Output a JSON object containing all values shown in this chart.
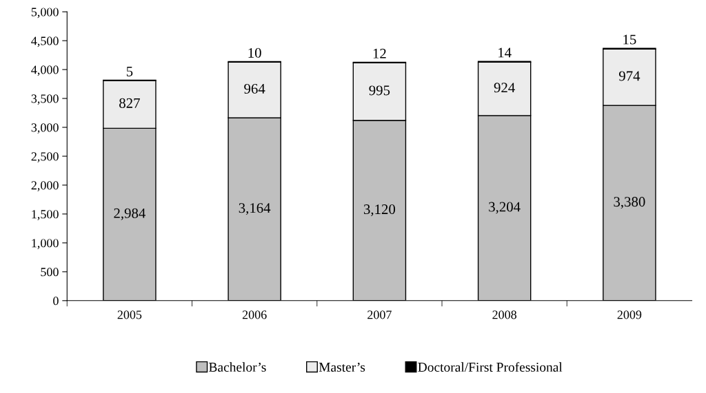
{
  "chart_data": {
    "type": "bar",
    "stacked": true,
    "categories": [
      "2005",
      "2006",
      "2007",
      "2008",
      "2009"
    ],
    "series": [
      {
        "name": "Bachelor’s",
        "color": "#bfbfbf",
        "values": [
          2984,
          3164,
          3120,
          3204,
          3380
        ],
        "value_labels": [
          "2,984",
          "3,164",
          "3,120",
          "3,204",
          "3,380"
        ]
      },
      {
        "name": "Master’s",
        "color": "#ececec",
        "values": [
          827,
          964,
          995,
          924,
          974
        ],
        "value_labels": [
          "827",
          "964",
          "995",
          "924",
          "974"
        ]
      },
      {
        "name": "Doctoral/First Professional",
        "color": "#000000",
        "values": [
          5,
          10,
          12,
          14,
          15
        ],
        "value_labels": [
          "5",
          "10",
          "12",
          "14",
          "15"
        ]
      }
    ],
    "ylim": [
      0,
      5000
    ],
    "yticks": [
      0,
      500,
      {
        "value": 1000,
        "label": "1,000"
      },
      {
        "value": 1500,
        "label": "1,500"
      },
      {
        "value": 2000,
        "label": "2,000"
      },
      {
        "value": 2500,
        "label": "2,500"
      },
      {
        "value": 3000,
        "label": "3,000"
      },
      {
        "value": 3500,
        "label": "3,500"
      },
      {
        "value": 4000,
        "label": "4,000"
      },
      {
        "value": 4500,
        "label": "4,500"
      },
      {
        "value": 5000,
        "label": "5,000"
      }
    ],
    "grid": false,
    "legend": "bottom"
  }
}
